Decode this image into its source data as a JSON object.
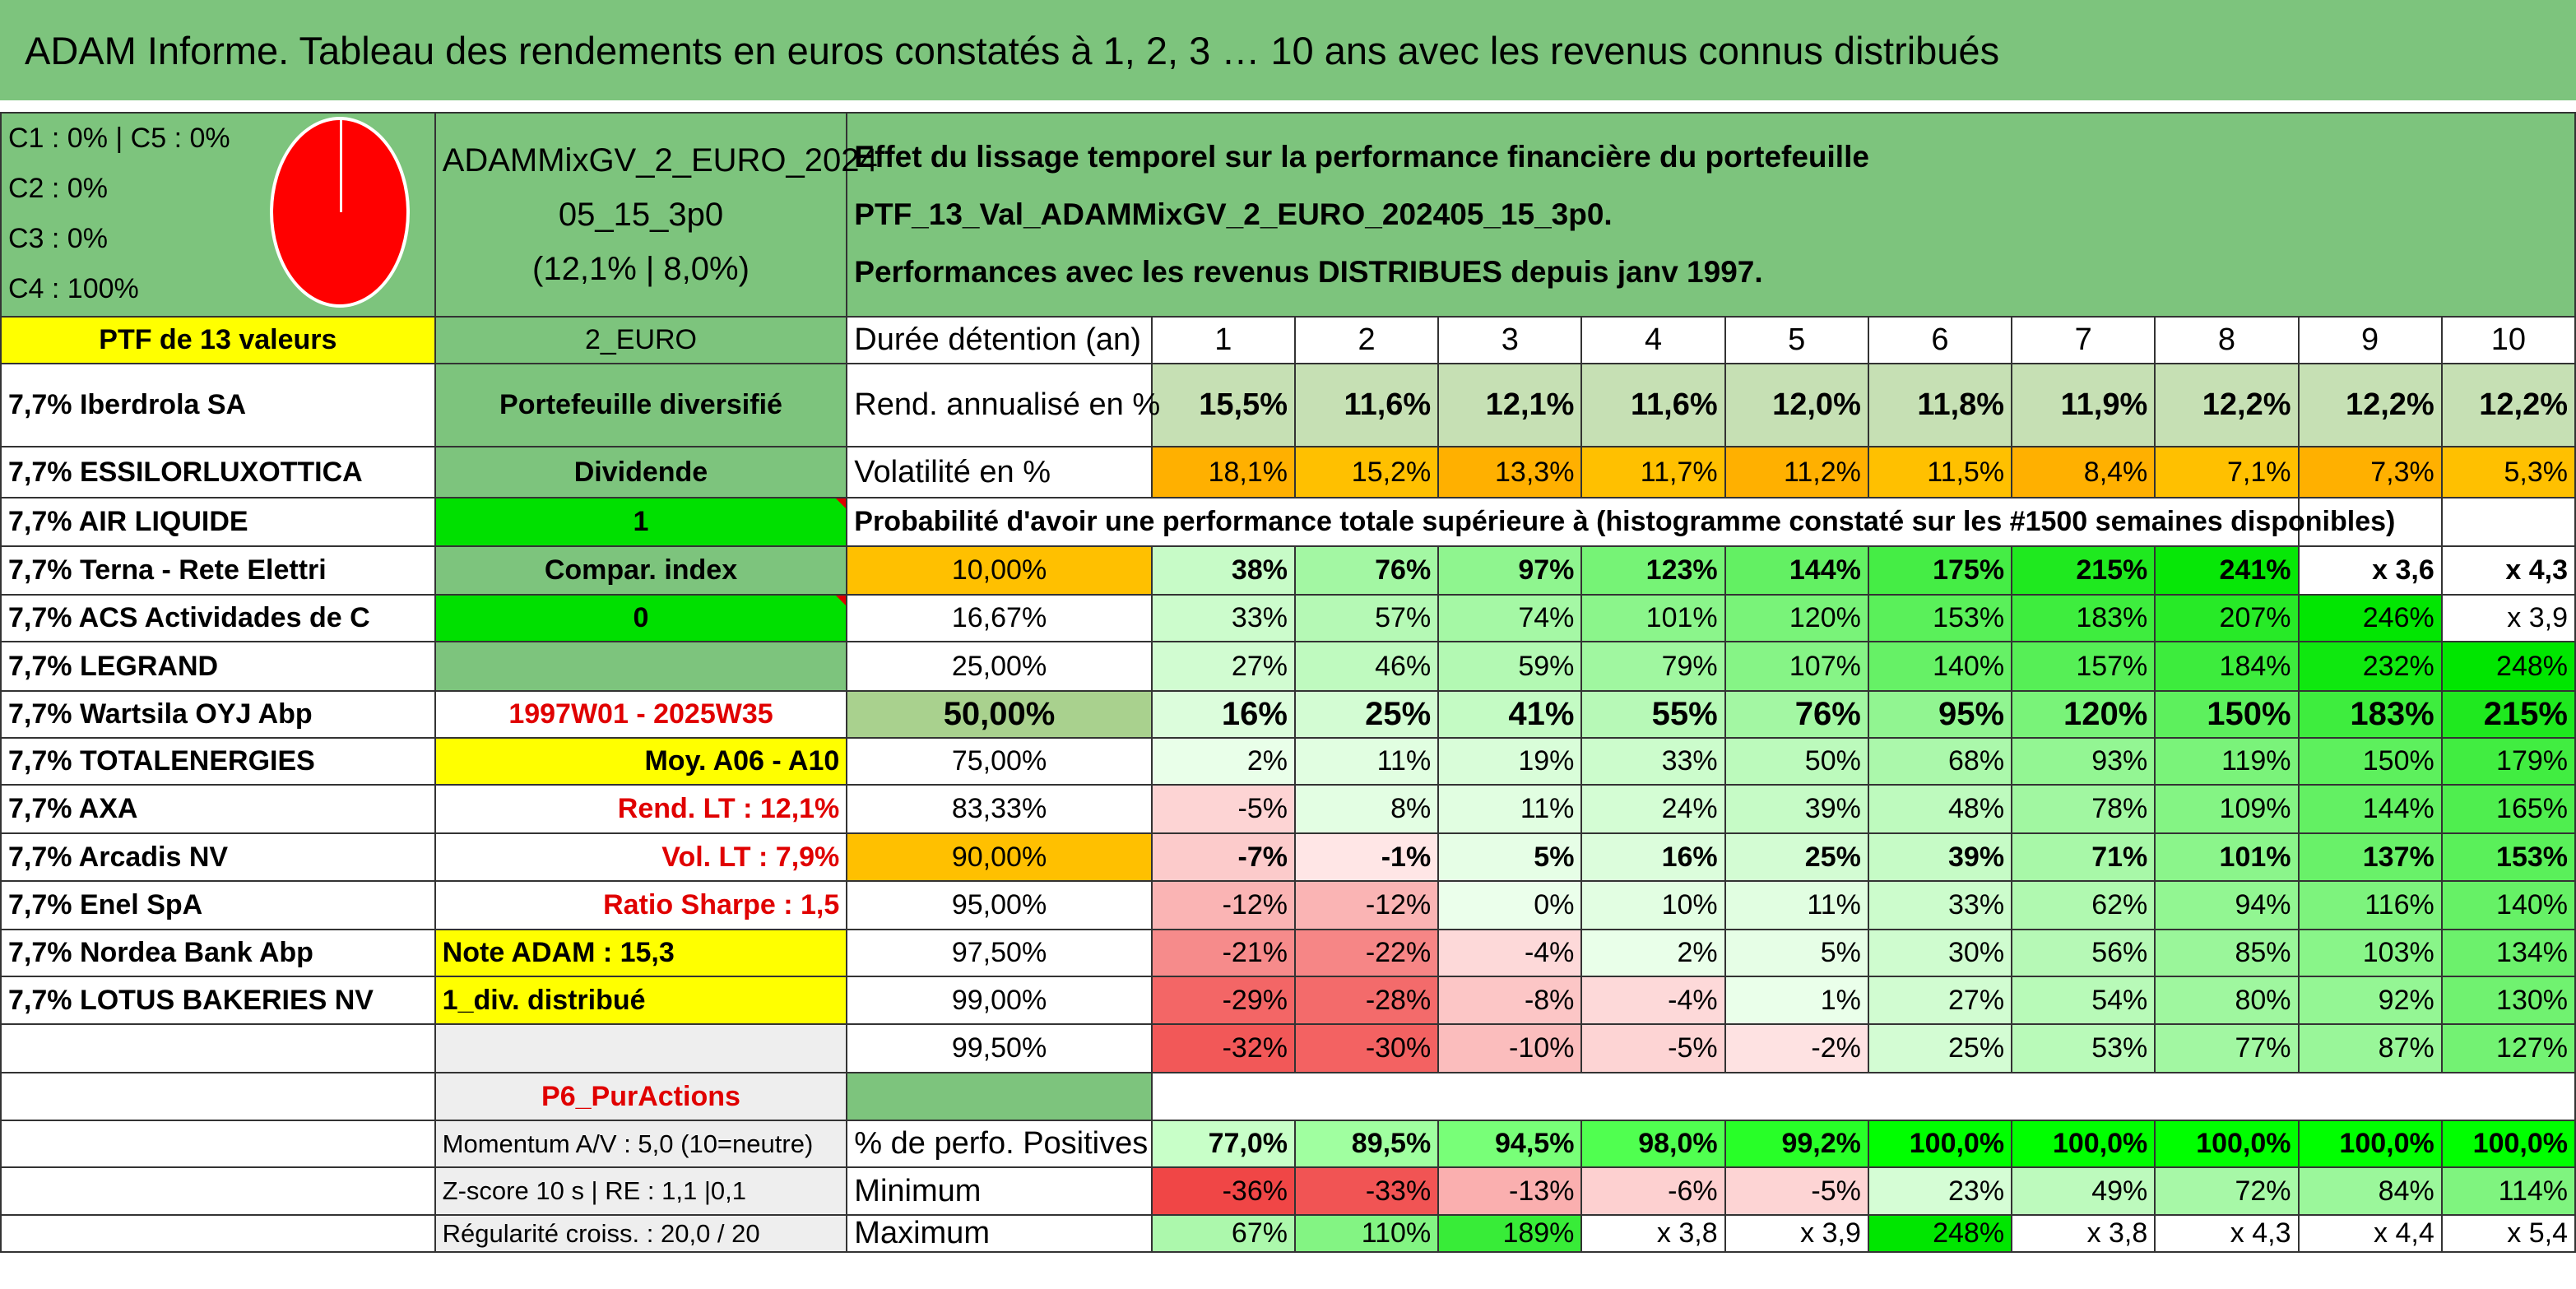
{
  "title": "ADAM Informe. Tableau des rendements en euros constatés à 1, 2, 3 … 10 ans avec les revenus connus distribués",
  "legend": {
    "lines": [
      "C1 : 0% | C5 : 0%",
      "C2 : 0%",
      "C3 : 0%",
      "C4 : 100%"
    ],
    "pie_color": "#ff0000",
    "pie_value": 1.0
  },
  "portfolio": {
    "name_line1": "ADAMMixGV_2_EURO_2024",
    "name_line2": "05_15_3p0",
    "name_line3": "(12,1% | 8,0%)"
  },
  "description": {
    "line1": "Effet du lissage temporel sur la performance financière du portefeuille PTF_13_Val_ADAMMixGV_2_EURO_202405_15_3p0.",
    "line2": "Performances avec les revenus DISTRIBUES depuis janv 1997."
  },
  "ptf_header": "PTF de 13 valeurs",
  "currency": "2_EURO",
  "duration_label": "Durée détention (an)",
  "years": [
    "1",
    "2",
    "3",
    "4",
    "5",
    "6",
    "7",
    "8",
    "9",
    "10"
  ],
  "holdings": [
    "7,7% Iberdrola SA",
    "7,7% ESSILORLUXOTTICA",
    "7,7% AIR LIQUIDE",
    "7,7% Terna - Rete Elettri",
    "7,7% ACS Actividades de C",
    "7,7% LEGRAND",
    "7,7% Wartsila OYJ Abp",
    "7,7% TOTALENERGIES",
    "7,7% AXA",
    "7,7% Arcadis NV",
    "7,7% Enel SpA",
    "7,7% Nordea Bank Abp",
    "7,7% LOTUS BAKERIES NV",
    ""
  ],
  "info": [
    "Portefeuille diversifié",
    "Dividende",
    "1",
    "Compar. index",
    "0",
    "",
    "1997W01 - 2025W35",
    "Moy. A06 - A10",
    "Rend. LT : 12,1%",
    "Vol. LT : 7,9%",
    "Ratio Sharpe : 1,5",
    "Note ADAM : 15,3",
    "1_div. distribué",
    ""
  ],
  "rend": {
    "label": "Rend. annualisé en %",
    "values": [
      "15,5%",
      "11,6%",
      "12,1%",
      "11,6%",
      "12,0%",
      "11,8%",
      "11,9%",
      "12,2%",
      "12,2%",
      "12,2%"
    ]
  },
  "vol": {
    "label": "Volatilité en %",
    "values": [
      "18,1%",
      "15,2%",
      "13,3%",
      "11,7%",
      "11,2%",
      "11,5%",
      "8,4%",
      "7,1%",
      "7,3%",
      "5,3%"
    ]
  },
  "prob_label": "Probabilité d'avoir une performance totale supérieure à (histogramme constaté sur les #1500 semaines disponibles)",
  "prob_rows": [
    {
      "p": "10,00%",
      "v": [
        "38%",
        "76%",
        "97%",
        "123%",
        "144%",
        "175%",
        "215%",
        "241%",
        "x 3,6",
        "x 4,3"
      ]
    },
    {
      "p": "16,67%",
      "v": [
        "33%",
        "57%",
        "74%",
        "101%",
        "120%",
        "153%",
        "183%",
        "207%",
        "246%",
        "x 3,9"
      ]
    },
    {
      "p": "25,00%",
      "v": [
        "27%",
        "46%",
        "59%",
        "79%",
        "107%",
        "140%",
        "157%",
        "184%",
        "232%",
        "248%"
      ]
    },
    {
      "p": "50,00%",
      "v": [
        "16%",
        "25%",
        "41%",
        "55%",
        "76%",
        "95%",
        "120%",
        "150%",
        "183%",
        "215%"
      ]
    },
    {
      "p": "75,00%",
      "v": [
        "2%",
        "11%",
        "19%",
        "33%",
        "50%",
        "68%",
        "93%",
        "119%",
        "150%",
        "179%"
      ]
    },
    {
      "p": "83,33%",
      "v": [
        "-5%",
        "8%",
        "11%",
        "24%",
        "39%",
        "48%",
        "78%",
        "109%",
        "144%",
        "165%"
      ]
    },
    {
      "p": "90,00%",
      "v": [
        "-7%",
        "-1%",
        "5%",
        "16%",
        "25%",
        "39%",
        "71%",
        "101%",
        "137%",
        "153%"
      ]
    },
    {
      "p": "95,00%",
      "v": [
        "-12%",
        "-12%",
        "0%",
        "10%",
        "11%",
        "33%",
        "62%",
        "94%",
        "116%",
        "140%"
      ]
    },
    {
      "p": "97,50%",
      "v": [
        "-21%",
        "-22%",
        "-4%",
        "2%",
        "5%",
        "30%",
        "56%",
        "85%",
        "103%",
        "134%"
      ]
    },
    {
      "p": "99,00%",
      "v": [
        "-29%",
        "-28%",
        "-8%",
        "-4%",
        "1%",
        "27%",
        "54%",
        "80%",
        "92%",
        "130%"
      ]
    },
    {
      "p": "99,50%",
      "v": [
        "-32%",
        "-30%",
        "-10%",
        "-5%",
        "-2%",
        "25%",
        "53%",
        "77%",
        "87%",
        "127%"
      ]
    }
  ],
  "p6_label": "P6_PurActions",
  "extras": [
    "Momentum A/V : 5,0 (10=neutre)",
    "Z-score 10 s | RE : 1,1 |0,1",
    "Régularité croiss. : 20,0 / 20"
  ],
  "stats": [
    {
      "label": "% de perfo. Positives",
      "v": [
        "77,0%",
        "89,5%",
        "94,5%",
        "98,0%",
        "99,2%",
        "100,0%",
        "100,0%",
        "100,0%",
        "100,0%",
        "100,0%"
      ]
    },
    {
      "label": "Minimum",
      "v": [
        "-36%",
        "-33%",
        "-13%",
        "-6%",
        "-5%",
        "23%",
        "49%",
        "72%",
        "84%",
        "114%"
      ]
    },
    {
      "label": "Maximum",
      "v": [
        "67%",
        "110%",
        "189%",
        "x 3,8",
        "x 3,9",
        "248%",
        "x 3,8",
        "x 4,3",
        "x 4,4",
        "x 5,4"
      ]
    }
  ]
}
